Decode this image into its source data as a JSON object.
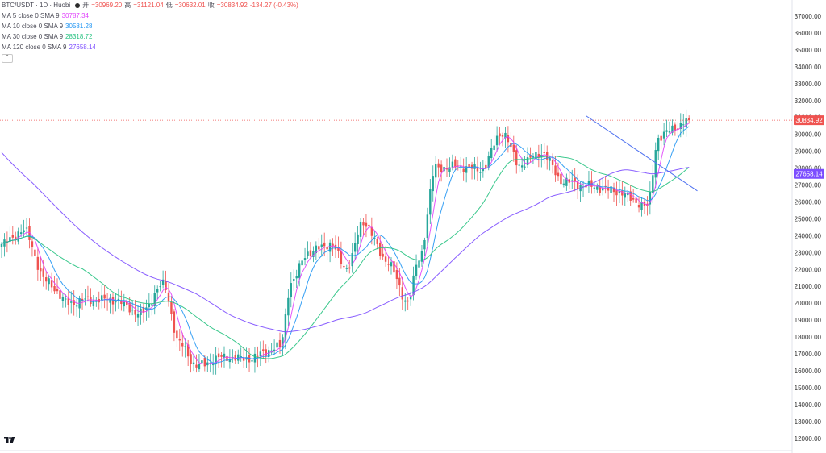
{
  "header": {
    "symbol": "BTC/USDT · 1D · Huobi",
    "open_label": "开",
    "open": "=30969.20",
    "high_label": "高",
    "high": "=31121.04",
    "low_label": "低",
    "low": "=30632.01",
    "close_label": "收",
    "close": "=30834.92",
    "change": "-134.27 (-0.43%)"
  },
  "indicators": [
    {
      "label": "MA 5 close 0 SMA 9",
      "value": "30787.34",
      "color": "#e040fb"
    },
    {
      "label": "MA 10 close 0 SMA 9",
      "value": "30581.28",
      "color": "#2196f3"
    },
    {
      "label": "MA 30 close 0 SMA 9",
      "value": "28318.72",
      "color": "#26c281"
    },
    {
      "label": "MA 120 close 0 SMA 9",
      "value": "27658.14",
      "color": "#7c4dff"
    }
  ],
  "collapse_icon": "chevron-up-icon",
  "logo_icon": "tradingview-logo",
  "price_tags": [
    {
      "value": "30834.92",
      "color": "#ef5350"
    },
    {
      "value": "27658.14",
      "color": "#7c4dff"
    }
  ],
  "chart_data": {
    "type": "candlestick",
    "y_axis_position": "right",
    "ylim": [
      12000,
      38000
    ],
    "y_ticks": [
      "12000.00",
      "13000.00",
      "14000.00",
      "15000.00",
      "16000.00",
      "17000.00",
      "18000.00",
      "19000.00",
      "20000.00",
      "21000.00",
      "22000.00",
      "23000.00",
      "24000.00",
      "25000.00",
      "26000.00",
      "27000.00",
      "28000.00",
      "29000.00",
      "30000.00",
      "31000.00",
      "32000.00",
      "33000.00",
      "34000.00",
      "35000.00",
      "36000.00",
      "37000.00"
    ],
    "x_axis_labels": [],
    "grid": false,
    "up_color": "#26a69a",
    "down_color": "#ef5350",
    "close_anchors": [
      [
        0,
        23500
      ],
      [
        8,
        24300
      ],
      [
        16,
        21300
      ],
      [
        24,
        20000
      ],
      [
        32,
        20200
      ],
      [
        40,
        20200
      ],
      [
        50,
        19400
      ],
      [
        58,
        21100
      ],
      [
        64,
        17600
      ],
      [
        70,
        16300
      ],
      [
        80,
        16800
      ],
      [
        88,
        16700
      ],
      [
        100,
        17400
      ],
      [
        104,
        21200
      ],
      [
        110,
        23000
      ],
      [
        118,
        23500
      ],
      [
        124,
        22100
      ],
      [
        130,
        24800
      ],
      [
        138,
        22600
      ],
      [
        146,
        20100
      ],
      [
        150,
        22600
      ],
      [
        156,
        28000
      ],
      [
        164,
        28100
      ],
      [
        172,
        27900
      ],
      [
        180,
        30100
      ],
      [
        186,
        28200
      ],
      [
        194,
        28900
      ],
      [
        202,
        27200
      ],
      [
        212,
        26900
      ],
      [
        222,
        26600
      ],
      [
        228,
        26000
      ],
      [
        232,
        25700
      ],
      [
        236,
        29800
      ],
      [
        242,
        30400
      ],
      [
        247,
        30835
      ]
    ],
    "trendline": {
      "from": [
        210,
        31100
      ],
      "to": [
        250,
        26650
      ],
      "color": "#4f72f0"
    },
    "current_price_line": {
      "value": 30834.92,
      "color": "#ef5350",
      "style": "dotted"
    }
  }
}
